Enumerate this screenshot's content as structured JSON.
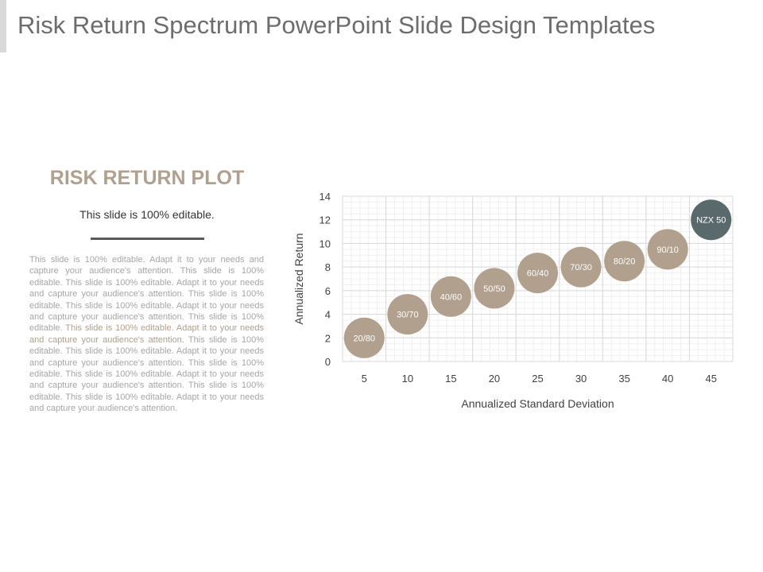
{
  "slide": {
    "title": "Risk Return Spectrum PowerPoint Slide Design Templates"
  },
  "left_panel": {
    "heading": "RISK RETURN PLOT",
    "subtitle": "This slide is 100% editable.",
    "body_part1": "This slide is 100% editable. Adapt it to your needs and capture your audience's attention. This slide is 100% editable. This slide is 100% editable. Adapt it to your needs and capture your audience's attention. This slide is 100% editable. This slide is 100% editable. Adapt it to your needs and capture your audience's attention. This slide is 100% editable. ",
    "body_highlight": "This slide is 100% editable. Adapt it to your needs and capture your audience's attention.",
    "body_part2": " This slide is 100% editable. This slide is 100% editable. Adapt it to your needs and capture your audience's attention. This slide is 100% editable. This slide is 100% editable. Adapt it to your needs and capture your audience's attention. This slide is 100% editable. This slide is 100% editable. Adapt it to your needs and capture your audience's attention.",
    "colors": {
      "heading": "#b0a08d",
      "highlight": "#b0a08d",
      "body": "#a6a6a6"
    }
  },
  "chart_data": {
    "type": "scatter",
    "title": "",
    "xlabel": "Annualized Standard Deviation",
    "ylabel": "Annualized Return",
    "x_categories": [
      "5",
      "10",
      "15",
      "20",
      "25",
      "30",
      "35",
      "40",
      "45"
    ],
    "xlim": [
      2.5,
      47.5
    ],
    "ylim": [
      0,
      14
    ],
    "y_ticks": [
      "0",
      "2",
      "4",
      "6",
      "8",
      "10",
      "12",
      "14"
    ],
    "grid": true,
    "legend": "none",
    "points": [
      {
        "label": "20/80",
        "x": 5,
        "y": 2,
        "color": "#b0a08d"
      },
      {
        "label": "30/70",
        "x": 10,
        "y": 4,
        "color": "#b0a08d"
      },
      {
        "label": "40/60",
        "x": 15,
        "y": 5.5,
        "color": "#b0a08d"
      },
      {
        "label": "50/50",
        "x": 20,
        "y": 6.2,
        "color": "#b0a08d"
      },
      {
        "label": "60/40",
        "x": 25,
        "y": 7.5,
        "color": "#b0a08d"
      },
      {
        "label": "70/30",
        "x": 30,
        "y": 8,
        "color": "#b0a08d"
      },
      {
        "label": "80/20",
        "x": 35,
        "y": 8.5,
        "color": "#b0a08d"
      },
      {
        "label": "90/10",
        "x": 40,
        "y": 9.5,
        "color": "#b0a08d"
      },
      {
        "label": "NZX 50",
        "x": 45,
        "y": 12,
        "color": "#5a6a6c"
      }
    ]
  }
}
